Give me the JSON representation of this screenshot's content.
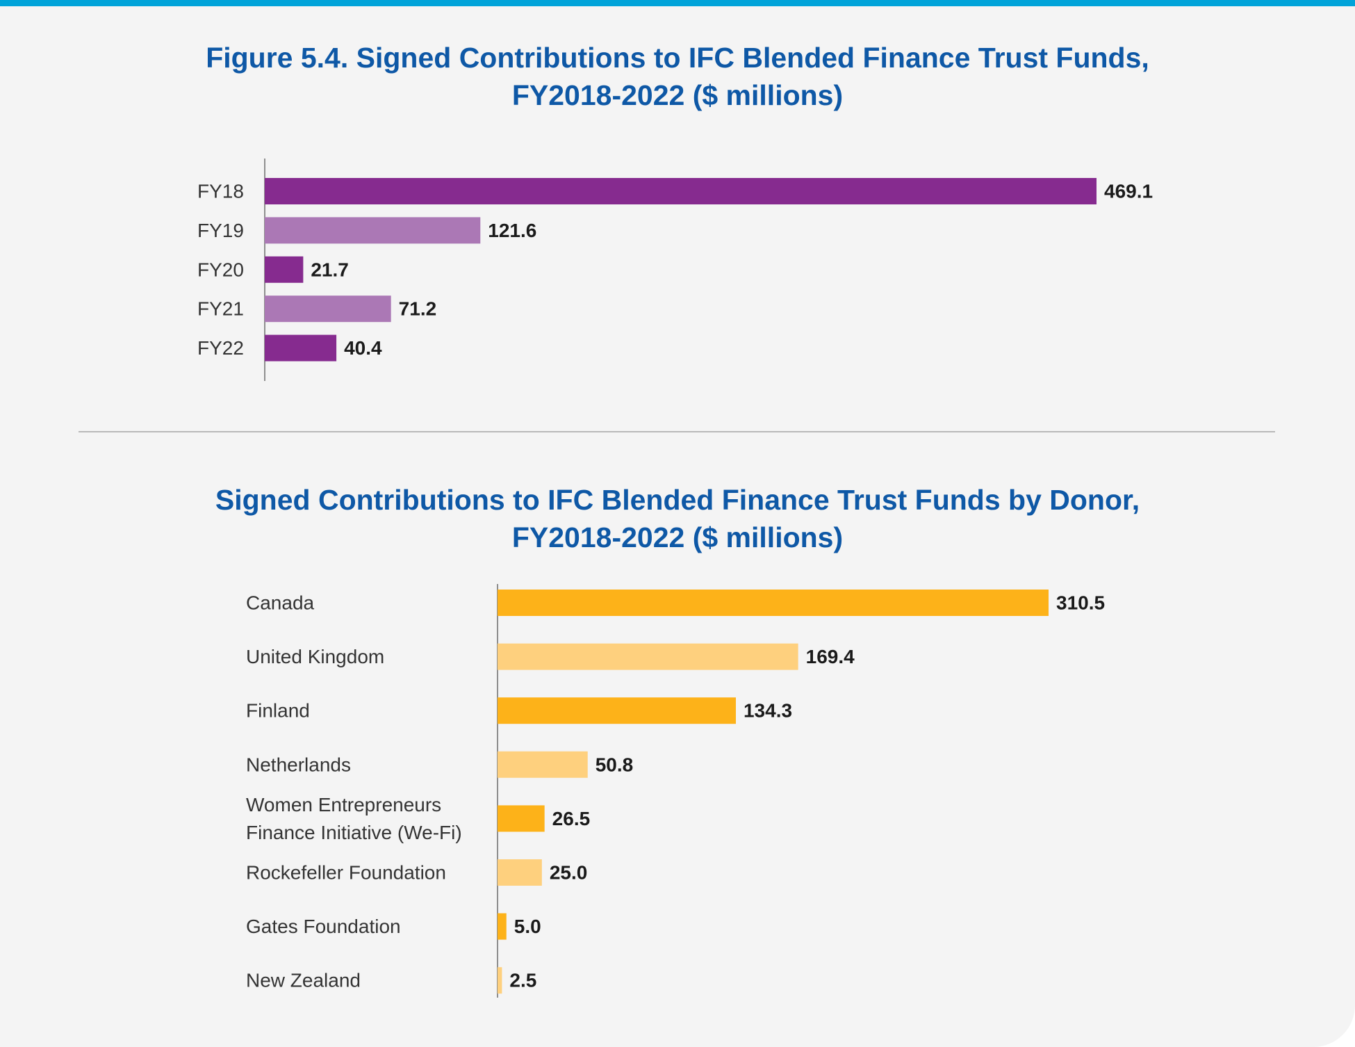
{
  "chart_data": [
    {
      "type": "bar",
      "orientation": "horizontal",
      "title": [
        "Figure 5.4. Signed Contributions to IFC Blended Finance Trust Funds,",
        "FY2018-2022 ($ millions)"
      ],
      "categories": [
        "FY18",
        "FY19",
        "FY20",
        "FY21",
        "FY22"
      ],
      "values": [
        469.1,
        121.6,
        21.7,
        71.2,
        40.4
      ],
      "value_labels": [
        "469.1",
        "121.6",
        "21.7",
        "71.2",
        "40.4"
      ],
      "colors": [
        "#862b8f",
        "#ab78b5",
        "#862b8f",
        "#ab78b5",
        "#862b8f"
      ],
      "xlabel": "",
      "ylabel": "",
      "xlim": [
        0,
        469.1
      ],
      "grid": false,
      "legend": "none"
    },
    {
      "type": "bar",
      "orientation": "horizontal",
      "title": [
        "Signed Contributions to IFC Blended Finance Trust Funds by Donor,",
        "FY2018-2022 ($ millions)"
      ],
      "categories": [
        [
          "Canada"
        ],
        [
          "United Kingdom"
        ],
        [
          "Finland"
        ],
        [
          "Netherlands"
        ],
        [
          "Women Entrepreneurs",
          "Finance Initiative (We-Fi)"
        ],
        [
          "Rockefeller Foundation"
        ],
        [
          "Gates Foundation"
        ],
        [
          "New Zealand"
        ]
      ],
      "values": [
        310.5,
        169.4,
        134.3,
        50.8,
        26.5,
        25.0,
        5.0,
        2.5
      ],
      "value_labels": [
        "310.5",
        "169.4",
        "134.3",
        "50.8",
        "26.5",
        "25.0",
        "5.0",
        "2.5"
      ],
      "colors": [
        "#fdb219",
        "#fed07e",
        "#fdb219",
        "#fed07e",
        "#fdb219",
        "#fed07e",
        "#fdb219",
        "#fed07e"
      ],
      "xlabel": "",
      "ylabel": "",
      "xlim": [
        0,
        310.5
      ],
      "grid": false,
      "legend": "none"
    }
  ]
}
